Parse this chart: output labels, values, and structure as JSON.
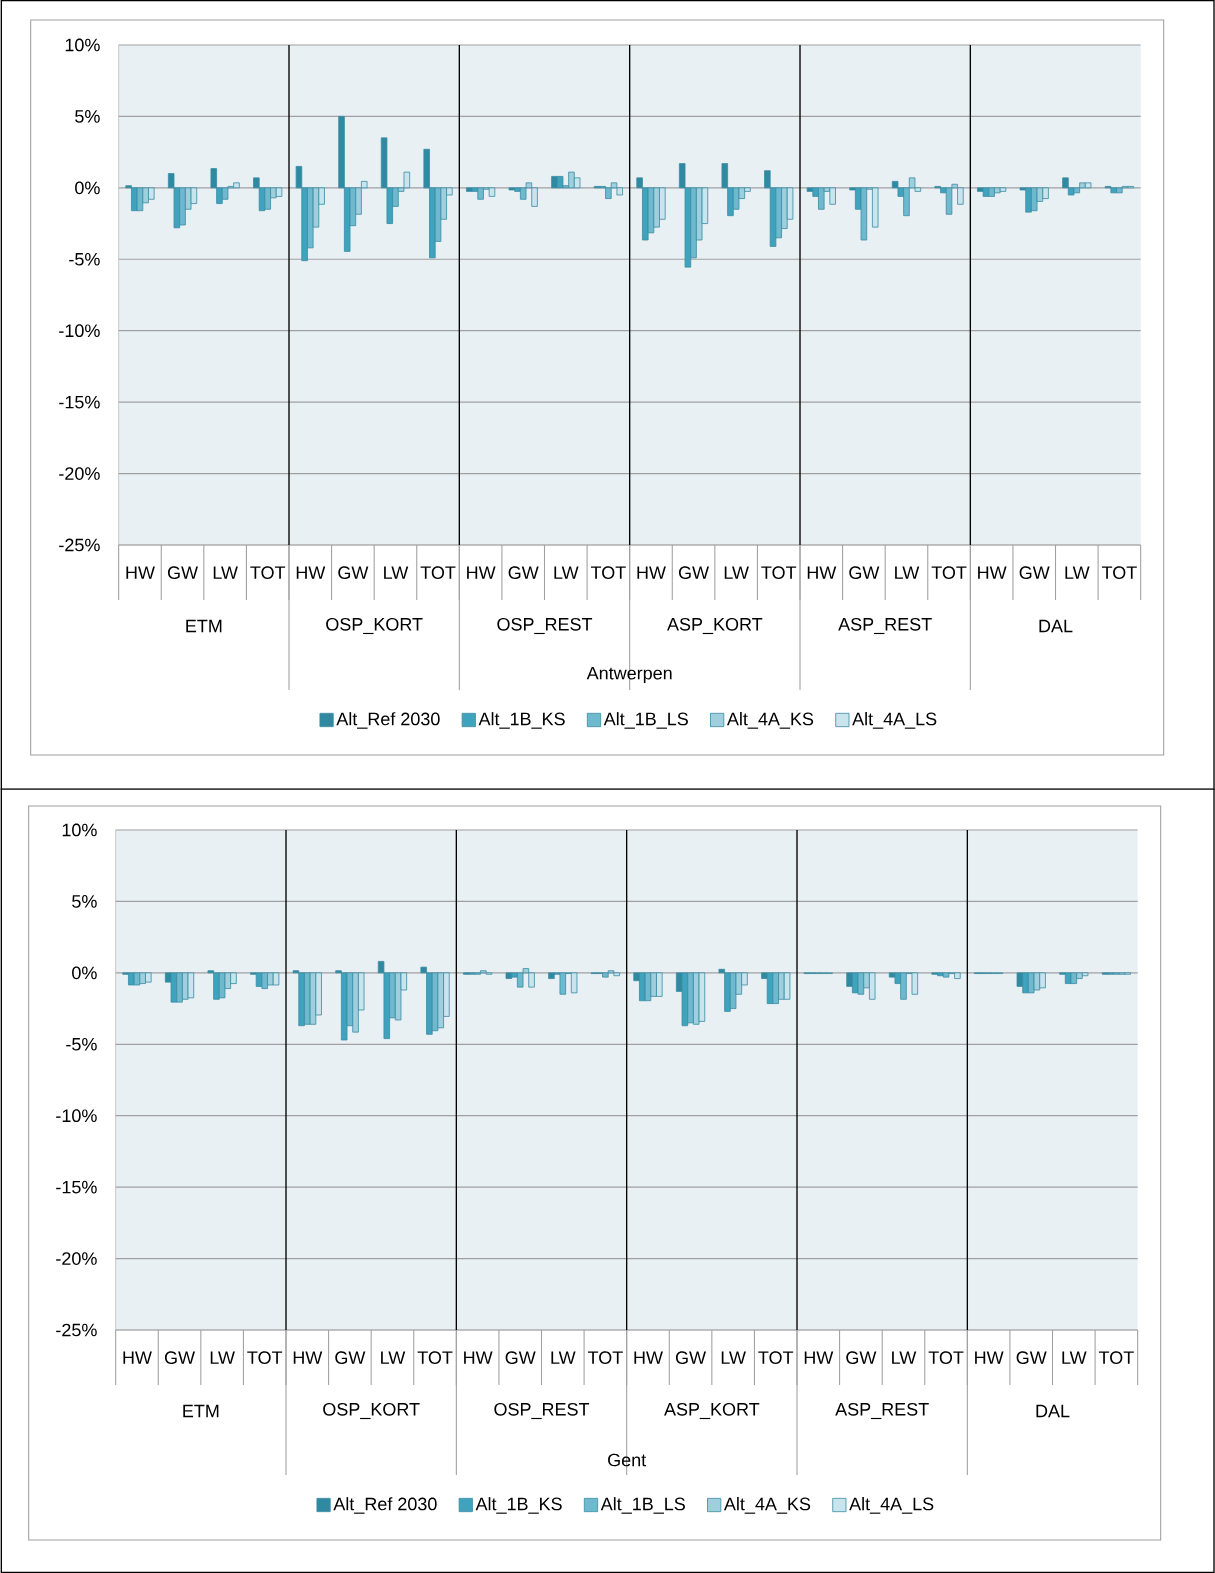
{
  "chart_data": [
    {
      "type": "bar",
      "xlabel": "Antwerpen",
      "categories": [
        "HW",
        "GW",
        "LW",
        "TOT",
        "HW",
        "GW",
        "LW",
        "TOT",
        "HW",
        "GW",
        "LW",
        "TOT",
        "HW",
        "GW",
        "LW",
        "TOT",
        "HW",
        "GW",
        "LW",
        "TOT",
        "HW",
        "GW",
        "LW",
        "TOT"
      ],
      "annotations": [
        "ETM",
        "OSP_KORT",
        "OSP_REST",
        "ASP_KORT",
        "ASP_REST",
        "DAL"
      ],
      "ylim": [
        -25,
        10
      ],
      "yticks": [
        {
          "value": 10,
          "label": "10%"
        },
        {
          "value": 5,
          "label": "5%"
        },
        {
          "value": 0,
          "label": "0%"
        },
        {
          "value": -5,
          "label": "-5%"
        },
        {
          "value": -10,
          "label": "-10%"
        },
        {
          "value": -15,
          "label": "-15%"
        },
        {
          "value": -20,
          "label": "-20%"
        },
        {
          "value": -25,
          "label": "-25%"
        }
      ],
      "grid": "y",
      "legend": "bottom",
      "series": [
        {
          "name": "Alt_Ref 2030",
          "color": "#2f8aa1",
          "values": [
            0.15,
            1.0,
            1.35,
            0.7,
            1.5,
            5.0,
            3.5,
            2.7,
            -0.25,
            -0.15,
            0.8,
            0.1,
            0.7,
            1.7,
            1.7,
            1.2,
            -0.25,
            -0.15,
            0.45,
            0.1,
            -0.25,
            -0.15,
            0.7,
            0.1
          ]
        },
        {
          "name": "Alt_1B_KS",
          "color": "#3fa3be",
          "values": [
            -1.6,
            -2.8,
            -1.1,
            -1.6,
            -5.1,
            -4.45,
            -2.5,
            -4.9,
            -0.25,
            -0.25,
            0.8,
            0.1,
            -3.65,
            -5.55,
            -1.95,
            -4.1,
            -0.6,
            -1.5,
            -0.6,
            -0.35,
            -0.6,
            -1.7,
            -0.5,
            -0.35
          ]
        },
        {
          "name": "Alt_1B_LS",
          "color": "#6fb9cf",
          "values": [
            -1.6,
            -2.6,
            -0.8,
            -1.5,
            -4.2,
            -2.65,
            -1.3,
            -3.75,
            -0.8,
            -0.8,
            0.15,
            -0.75,
            -3.15,
            -4.9,
            -1.5,
            -3.5,
            -1.5,
            -3.65,
            -1.95,
            -1.85,
            -0.6,
            -1.6,
            -0.35,
            -0.35
          ]
        },
        {
          "name": "Alt_4A_KS",
          "color": "#9fcfdd",
          "values": [
            -1.05,
            -1.5,
            0.1,
            -0.7,
            -2.75,
            -1.85,
            -0.25,
            -2.2,
            -0.1,
            0.35,
            1.1,
            0.35,
            -2.75,
            -3.65,
            -0.75,
            -2.85,
            -0.25,
            -0.1,
            0.7,
            0.25,
            -0.35,
            -0.95,
            0.35,
            0.1
          ]
        },
        {
          "name": "Alt_4A_LS",
          "color": "#c8e4ec",
          "values": [
            -0.8,
            -1.1,
            0.35,
            -0.6,
            -1.15,
            0.45,
            1.1,
            -0.5,
            -0.6,
            -1.3,
            0.7,
            -0.5,
            -2.2,
            -2.5,
            -0.25,
            -2.2,
            -1.15,
            -2.75,
            -0.25,
            -1.15,
            -0.25,
            -0.75,
            0.35,
            0.1
          ]
        }
      ]
    },
    {
      "type": "bar",
      "xlabel": "Gent",
      "categories": [
        "HW",
        "GW",
        "LW",
        "TOT",
        "HW",
        "GW",
        "LW",
        "TOT",
        "HW",
        "GW",
        "LW",
        "TOT",
        "HW",
        "GW",
        "LW",
        "TOT",
        "HW",
        "GW",
        "LW",
        "TOT",
        "HW",
        "GW",
        "LW",
        "TOT"
      ],
      "annotations": [
        "ETM",
        "OSP_KORT",
        "OSP_REST",
        "ASP_KORT",
        "ASP_REST",
        "DAL"
      ],
      "ylim": [
        -25,
        10
      ],
      "yticks": [
        {
          "value": 10,
          "label": "10%"
        },
        {
          "value": 5,
          "label": "5%"
        },
        {
          "value": 0,
          "label": "0%"
        },
        {
          "value": -5,
          "label": "-5%"
        },
        {
          "value": -10,
          "label": "-10%"
        },
        {
          "value": -15,
          "label": "-15%"
        },
        {
          "value": -20,
          "label": "-20%"
        },
        {
          "value": -25,
          "label": "-25%"
        }
      ],
      "grid": "y",
      "legend": "bottom",
      "series": [
        {
          "name": "Alt_Ref 2030",
          "color": "#2f8aa1",
          "values": [
            -0.1,
            -0.65,
            0.15,
            -0.1,
            0.15,
            0.15,
            0.8,
            0.4,
            -0.1,
            -0.4,
            -0.4,
            -0.05,
            -0.55,
            -1.3,
            0.25,
            -0.4,
            -0.05,
            -0.95,
            -0.3,
            -0.1,
            -0.05,
            -0.95,
            -0.1,
            -0.1
          ]
        },
        {
          "name": "Alt_1B_KS",
          "color": "#3fa3be",
          "values": [
            -0.85,
            -2.05,
            -1.85,
            -0.95,
            -3.7,
            -4.7,
            -4.6,
            -4.3,
            -0.1,
            -0.3,
            -0.1,
            -0.05,
            -1.95,
            -3.7,
            -2.7,
            -2.15,
            -0.05,
            -1.4,
            -0.75,
            -0.2,
            -0.05,
            -1.4,
            -0.75,
            -0.1
          ]
        },
        {
          "name": "Alt_1B_LS",
          "color": "#6fb9cf",
          "values": [
            -0.85,
            -2.05,
            -1.75,
            -1.1,
            -3.6,
            -3.7,
            -3.15,
            -4.05,
            -0.1,
            -1.0,
            -1.5,
            -0.3,
            -1.95,
            -3.5,
            -2.5,
            -2.15,
            -0.05,
            -1.5,
            -1.85,
            -0.3,
            -0.05,
            -1.4,
            -0.75,
            -0.1
          ]
        },
        {
          "name": "Alt_4A_KS",
          "color": "#9fcfdd",
          "values": [
            -0.75,
            -1.85,
            -1.1,
            -0.85,
            -3.6,
            -4.15,
            -3.3,
            -3.85,
            0.15,
            0.3,
            -0.05,
            0.15,
            -1.65,
            -3.6,
            -1.5,
            -1.85,
            -0.05,
            -1.05,
            -0.05,
            -0.05,
            -0.05,
            -1.2,
            -0.4,
            -0.1
          ]
        },
        {
          "name": "Alt_4A_LS",
          "color": "#c8e4ec",
          "values": [
            -0.65,
            -1.75,
            -0.75,
            -0.85,
            -2.95,
            -2.6,
            -1.2,
            -3.05,
            -0.1,
            -1.0,
            -1.4,
            -0.2,
            -1.65,
            -3.4,
            -0.85,
            -1.85,
            -0.05,
            -1.85,
            -1.5,
            -0.4,
            -0.05,
            -1.05,
            -0.2,
            -0.1
          ]
        }
      ]
    }
  ]
}
